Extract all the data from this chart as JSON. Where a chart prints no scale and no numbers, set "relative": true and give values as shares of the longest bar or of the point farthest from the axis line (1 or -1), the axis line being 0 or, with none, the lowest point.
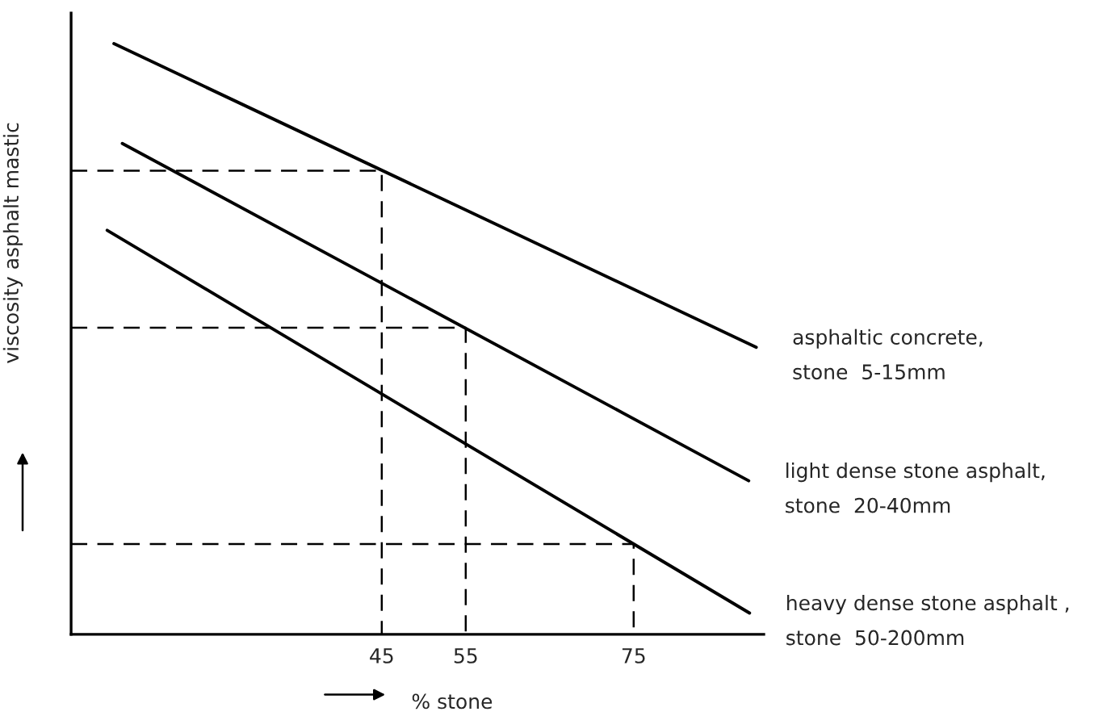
{
  "chart_data": {
    "type": "line",
    "relative": true,
    "xlabel": "% stone",
    "ylabel": "viscosity asphalt mastic",
    "xlim": [
      8,
      90.5
    ],
    "xticks": [
      45,
      55,
      75
    ],
    "grid": false,
    "legend": false,
    "marker": "none",
    "series": [
      {
        "name": "asphaltic concrete,\nstone  5-15mm",
        "color": "#000000",
        "line_style": "solid",
        "x": [
          13.1,
          89.6
        ],
        "values": [
          1.0,
          0.486
        ]
      },
      {
        "name": "light dense stone asphalt,\nstone  20-40mm",
        "color": "#000000",
        "line_style": "solid",
        "x": [
          14.1,
          88.7
        ],
        "values": [
          0.831,
          0.26
        ]
      },
      {
        "name": "heavy dense stone asphalt ,\nstone  50-200mm",
        "color": "#000000",
        "line_style": "solid",
        "x": [
          12.3,
          88.8
        ],
        "values": [
          0.684,
          0.036
        ]
      },
      {
        "color": "#000000",
        "line_style": "dashed",
        "x": [
          8,
          45,
          45
        ],
        "values": [
          0.785,
          0.785,
          0
        ]
      },
      {
        "color": "#000000",
        "line_style": "dashed",
        "x": [
          8,
          55,
          55
        ],
        "values": [
          0.519,
          0.519,
          0
        ]
      },
      {
        "color": "#000000",
        "line_style": "dashed",
        "x": [
          8,
          75,
          75
        ],
        "values": [
          0.153,
          0.153,
          0
        ]
      }
    ]
  }
}
